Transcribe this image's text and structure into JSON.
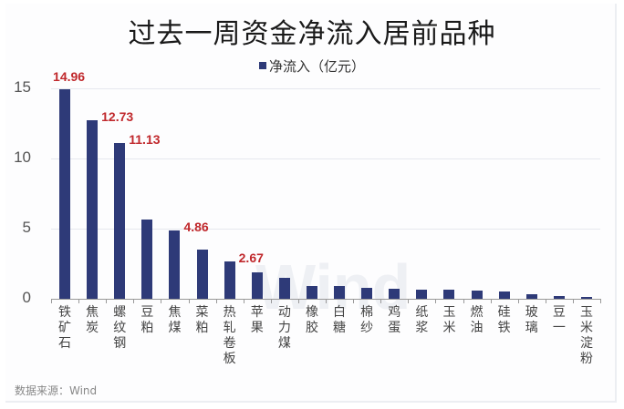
{
  "title": "过去一周资金净流入居前品种",
  "legend": "净流入（亿元）",
  "source": "数据来源：Wind",
  "watermark": "Wind",
  "colors": {
    "bar": "#2e3a78",
    "label": "#c0282c"
  },
  "chart_data": {
    "type": "bar",
    "title": "过去一周资金净流入居前品种",
    "xlabel": "",
    "ylabel": "净流入（亿元）",
    "ylim": [
      0,
      15
    ],
    "yticks": [
      0,
      5,
      10,
      15
    ],
    "grid": true,
    "legend_position": "top",
    "categories": [
      "铁矿石",
      "焦炭",
      "螺纹钢",
      "豆粕",
      "焦煤",
      "菜粕",
      "热轧卷板",
      "苹果",
      "动力煤",
      "橡胶",
      "白糖",
      "棉纱",
      "鸡蛋",
      "纸浆",
      "玉米",
      "燃油",
      "硅铁",
      "玻璃",
      "豆一",
      "玉米淀粉"
    ],
    "series": [
      {
        "name": "净流入（亿元）",
        "values": [
          14.96,
          12.73,
          11.13,
          5.65,
          4.86,
          3.5,
          2.67,
          1.88,
          1.49,
          0.91,
          0.91,
          0.78,
          0.71,
          0.65,
          0.65,
          0.58,
          0.52,
          0.32,
          0.19,
          0.13
        ]
      }
    ],
    "data_labels": [
      {
        "category": "铁矿石",
        "value": "14.96"
      },
      {
        "category": "焦炭",
        "value": "12.73"
      },
      {
        "category": "螺纹钢",
        "value": "11.13"
      },
      {
        "category": "焦煤",
        "value": "4.86"
      },
      {
        "category": "热轧卷板",
        "value": "2.67"
      }
    ]
  }
}
